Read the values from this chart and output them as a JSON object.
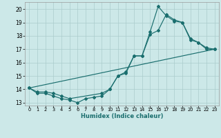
{
  "title": "",
  "xlabel": "Humidex (Indice chaleur)",
  "xlim": [
    -0.5,
    23.5
  ],
  "ylim": [
    12.8,
    20.5
  ],
  "yticks": [
    13,
    14,
    15,
    16,
    17,
    18,
    19,
    20
  ],
  "xticks": [
    0,
    1,
    2,
    3,
    4,
    5,
    6,
    7,
    8,
    9,
    10,
    11,
    12,
    13,
    14,
    15,
    16,
    17,
    18,
    19,
    20,
    21,
    22,
    23
  ],
  "bg_color": "#cce8e8",
  "grid_color": "#aacccc",
  "line_color": "#1a6e6e",
  "line1_x": [
    0,
    23
  ],
  "line1_y": [
    14.1,
    17.0
  ],
  "line2_x": [
    0,
    1,
    2,
    3,
    4,
    5,
    6,
    7,
    8,
    9,
    10,
    11,
    12,
    13,
    14,
    15,
    16,
    17,
    18,
    19,
    20,
    21,
    22,
    23
  ],
  "line2_y": [
    14.1,
    13.7,
    13.7,
    13.5,
    13.3,
    13.2,
    13.0,
    13.3,
    13.4,
    13.5,
    14.0,
    15.0,
    15.3,
    16.5,
    16.5,
    18.3,
    20.2,
    19.5,
    19.1,
    19.0,
    17.7,
    17.5,
    17.0,
    17.0
  ],
  "line3_x": [
    0,
    1,
    2,
    3,
    4,
    5,
    9,
    10,
    11,
    12,
    13,
    14,
    15,
    16,
    17,
    18,
    19,
    20,
    21,
    22,
    23
  ],
  "line3_y": [
    14.1,
    13.8,
    13.8,
    13.7,
    13.5,
    13.3,
    13.7,
    14.0,
    15.0,
    15.2,
    16.5,
    16.5,
    18.1,
    18.4,
    19.6,
    19.2,
    19.0,
    17.8,
    17.5,
    17.1,
    17.0
  ],
  "xtick_fontsize": 4.8,
  "ytick_fontsize": 5.5,
  "xlabel_fontsize": 6.0,
  "lw": 0.85,
  "ms": 2.0
}
